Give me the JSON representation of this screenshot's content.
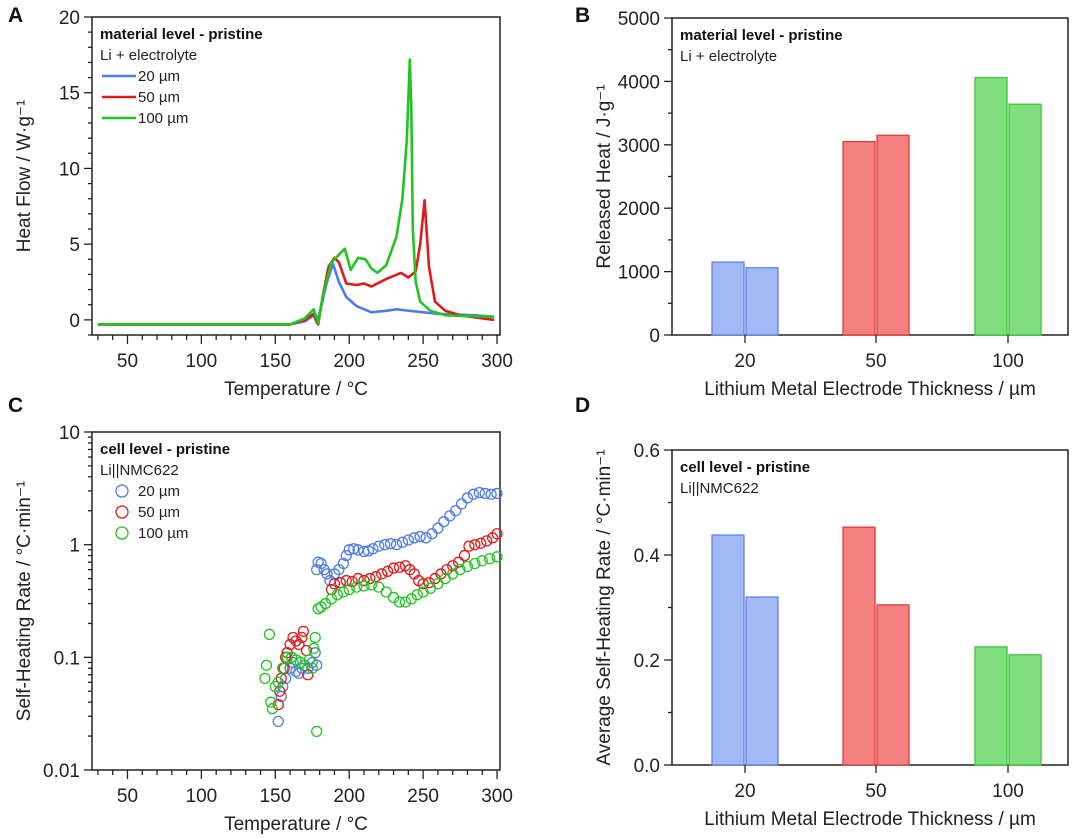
{
  "colors": {
    "20": "#4f7bea",
    "50": "#e01b1b",
    "100": "#22c422",
    "bar_fill": {
      "20": "#a3b9f6",
      "50": "#f58080",
      "100": "#80e080"
    },
    "bar_stroke": {
      "20": "#5d82e8",
      "50": "#e03a3a",
      "100": "#3fc63f"
    }
  },
  "chart_data": [
    {
      "panel": "A",
      "type": "line",
      "legend_title": "material level - pristine",
      "legend_subtitle": "Li + electrolyte",
      "xlabel": "Temperature / °C",
      "ylabel": "Heat Flow / W·g⁻¹",
      "xlim": [
        26,
        302
      ],
      "ylim": [
        -1,
        20
      ],
      "xticks": [
        50,
        100,
        150,
        200,
        250,
        300
      ],
      "yticks": [
        0,
        5,
        10,
        15,
        20
      ],
      "series": [
        {
          "name": "20 µm",
          "key": "20",
          "points": [
            [
              30,
              -0.3
            ],
            [
              160,
              -0.3
            ],
            [
              170,
              -0.1
            ],
            [
              176,
              0.3
            ],
            [
              178,
              -0.2
            ],
            [
              180,
              0.5
            ],
            [
              185,
              2.5
            ],
            [
              189,
              3.7
            ],
            [
              193,
              2.5
            ],
            [
              198,
              1.5
            ],
            [
              205,
              0.9
            ],
            [
              215,
              0.5
            ],
            [
              225,
              0.6
            ],
            [
              232,
              0.7
            ],
            [
              245,
              0.55
            ],
            [
              260,
              0.4
            ],
            [
              285,
              0.3
            ],
            [
              298,
              0.2
            ]
          ]
        },
        {
          "name": "50 µm",
          "key": "50",
          "points": [
            [
              30,
              -0.3
            ],
            [
              160,
              -0.3
            ],
            [
              170,
              0
            ],
            [
              176,
              0.4
            ],
            [
              179,
              -0.3
            ],
            [
              182,
              1.5
            ],
            [
              186,
              3.5
            ],
            [
              190,
              4.1
            ],
            [
              193,
              3.8
            ],
            [
              198,
              2.4
            ],
            [
              205,
              2.3
            ],
            [
              210,
              2.4
            ],
            [
              215,
              2.2
            ],
            [
              225,
              2.7
            ],
            [
              235,
              3.1
            ],
            [
              240,
              2.8
            ],
            [
              245,
              3.2
            ],
            [
              248,
              5
            ],
            [
              251,
              7.9
            ],
            [
              254,
              3.5
            ],
            [
              258,
              1.2
            ],
            [
              265,
              0.6
            ],
            [
              275,
              0.3
            ],
            [
              298,
              0
            ]
          ]
        },
        {
          "name": "100 µm",
          "key": "100",
          "points": [
            [
              30,
              -0.3
            ],
            [
              160,
              -0.3
            ],
            [
              170,
              0.1
            ],
            [
              176,
              0.7
            ],
            [
              179,
              -0.2
            ],
            [
              182,
              1.5
            ],
            [
              188,
              3.8
            ],
            [
              193,
              4.3
            ],
            [
              197,
              4.7
            ],
            [
              201,
              3.3
            ],
            [
              206,
              4.1
            ],
            [
              211,
              4
            ],
            [
              215,
              3.4
            ],
            [
              219,
              3.1
            ],
            [
              225,
              3.6
            ],
            [
              232,
              5.5
            ],
            [
              236,
              8
            ],
            [
              239,
              12
            ],
            [
              241,
              17.2
            ],
            [
              242,
              14
            ],
            [
              243,
              6
            ],
            [
              245,
              2.5
            ],
            [
              248,
              1.2
            ],
            [
              255,
              0.6
            ],
            [
              265,
              0.3
            ],
            [
              280,
              0.25
            ],
            [
              298,
              0.2
            ]
          ]
        }
      ]
    },
    {
      "panel": "B",
      "type": "bar",
      "legend_title": "material level - pristine",
      "legend_subtitle": "Li + electrolyte",
      "xlabel": "Lithium Metal Electrode Thickness / µm",
      "ylabel": "Released Heat / J·g⁻¹",
      "categories": [
        "20",
        "50",
        "100"
      ],
      "ylim": [
        0,
        5000
      ],
      "yticks": [
        0,
        1000,
        2000,
        3000,
        4000,
        5000
      ],
      "values": [
        [
          1150,
          1060
        ],
        [
          3050,
          3150
        ],
        [
          4060,
          3640
        ]
      ]
    },
    {
      "panel": "C",
      "type": "scatter",
      "yscale": "log",
      "legend_title": "cell level - pristine",
      "legend_subtitle": "Li||NMC622",
      "xlabel": "Temperature / °C",
      "ylabel": "Self-Heating Rate / °C·min⁻¹",
      "xlim": [
        26,
        302
      ],
      "ylim": [
        0.01,
        10
      ],
      "xticks": [
        50,
        100,
        150,
        200,
        250,
        300
      ],
      "yticks": [
        "0.01",
        "0.1",
        "1",
        "10"
      ],
      "series": [
        {
          "name": "20 µm",
          "key": "20",
          "points": [
            [
              152,
              0.027
            ],
            [
              154,
              0.045
            ],
            [
              155,
              0.055
            ],
            [
              157,
              0.065
            ],
            [
              160,
              0.08
            ],
            [
              162,
              0.09
            ],
            [
              164,
              0.075
            ],
            [
              166,
              0.072
            ],
            [
              168,
              0.08
            ],
            [
              172,
              0.08
            ],
            [
              175,
              0.09
            ],
            [
              177,
              0.11
            ],
            [
              178,
              0.085
            ],
            [
              178,
              0.6
            ],
            [
              179,
              0.7
            ],
            [
              181,
              0.68
            ],
            [
              183,
              0.6
            ],
            [
              185,
              0.55
            ],
            [
              187,
              0.48
            ],
            [
              190,
              0.55
            ],
            [
              193,
              0.6
            ],
            [
              196,
              0.68
            ],
            [
              198,
              0.8
            ],
            [
              200,
              0.9
            ],
            [
              203,
              0.92
            ],
            [
              206,
              0.9
            ],
            [
              210,
              0.87
            ],
            [
              213,
              0.88
            ],
            [
              216,
              0.92
            ],
            [
              220,
              0.97
            ],
            [
              224,
              1.0
            ],
            [
              228,
              1.02
            ],
            [
              232,
              1.0
            ],
            [
              236,
              1.05
            ],
            [
              240,
              1.1
            ],
            [
              244,
              1.15
            ],
            [
              248,
              1.18
            ],
            [
              252,
              1.15
            ],
            [
              256,
              1.25
            ],
            [
              260,
              1.4
            ],
            [
              264,
              1.6
            ],
            [
              268,
              1.8
            ],
            [
              272,
              2.0
            ],
            [
              276,
              2.3
            ],
            [
              280,
              2.6
            ],
            [
              284,
              2.8
            ],
            [
              288,
              2.9
            ],
            [
              292,
              2.85
            ],
            [
              296,
              2.8
            ],
            [
              300,
              2.85
            ]
          ]
        },
        {
          "name": "50 µm",
          "key": "50",
          "points": [
            [
              152,
              0.038
            ],
            [
              153,
              0.05
            ],
            [
              154,
              0.065
            ],
            [
              156,
              0.08
            ],
            [
              157,
              0.1
            ],
            [
              158,
              0.11
            ],
            [
              160,
              0.13
            ],
            [
              162,
              0.15
            ],
            [
              164,
              0.14
            ],
            [
              166,
              0.13
            ],
            [
              168,
              0.15
            ],
            [
              169,
              0.17
            ],
            [
              171,
              0.115
            ],
            [
              172,
              0.07
            ],
            [
              188,
              0.4
            ],
            [
              190,
              0.45
            ],
            [
              194,
              0.46
            ],
            [
              198,
              0.48
            ],
            [
              202,
              0.47
            ],
            [
              206,
              0.5
            ],
            [
              210,
              0.48
            ],
            [
              214,
              0.5
            ],
            [
              218,
              0.52
            ],
            [
              222,
              0.55
            ],
            [
              226,
              0.58
            ],
            [
              230,
              0.62
            ],
            [
              234,
              0.63
            ],
            [
              238,
              0.65
            ],
            [
              241,
              0.6
            ],
            [
              244,
              0.55
            ],
            [
              247,
              0.48
            ],
            [
              250,
              0.45
            ],
            [
              254,
              0.46
            ],
            [
              258,
              0.5
            ],
            [
              262,
              0.55
            ],
            [
              266,
              0.6
            ],
            [
              270,
              0.65
            ],
            [
              274,
              0.7
            ],
            [
              278,
              0.8
            ],
            [
              281,
              0.97
            ],
            [
              285,
              1.0
            ],
            [
              289,
              1.03
            ],
            [
              293,
              1.08
            ],
            [
              297,
              1.15
            ],
            [
              300,
              1.25
            ]
          ]
        },
        {
          "name": "100 µm",
          "key": "100",
          "points": [
            [
              143,
              0.065
            ],
            [
              144,
              0.085
            ],
            [
              146,
              0.16
            ],
            [
              147,
              0.04
            ],
            [
              148,
              0.035
            ],
            [
              150,
              0.055
            ],
            [
              152,
              0.06
            ],
            [
              155,
              0.08
            ],
            [
              158,
              0.1
            ],
            [
              161,
              0.1
            ],
            [
              164,
              0.095
            ],
            [
              167,
              0.09
            ],
            [
              170,
              0.085
            ],
            [
              173,
              0.095
            ],
            [
              175,
              0.08
            ],
            [
              176,
              0.12
            ],
            [
              177,
              0.15
            ],
            [
              178,
              0.022
            ],
            [
              179,
              0.27
            ],
            [
              181,
              0.28
            ],
            [
              184,
              0.3
            ],
            [
              188,
              0.33
            ],
            [
              192,
              0.36
            ],
            [
              196,
              0.38
            ],
            [
              200,
              0.4
            ],
            [
              205,
              0.42
            ],
            [
              210,
              0.43
            ],
            [
              215,
              0.44
            ],
            [
              220,
              0.42
            ],
            [
              225,
              0.38
            ],
            [
              230,
              0.34
            ],
            [
              234,
              0.31
            ],
            [
              238,
              0.31
            ],
            [
              242,
              0.33
            ],
            [
              246,
              0.36
            ],
            [
              250,
              0.38
            ],
            [
              255,
              0.41
            ],
            [
              260,
              0.45
            ],
            [
              265,
              0.5
            ],
            [
              270,
              0.55
            ],
            [
              275,
              0.6
            ],
            [
              280,
              0.64
            ],
            [
              285,
              0.68
            ],
            [
              290,
              0.72
            ],
            [
              295,
              0.75
            ],
            [
              300,
              0.78
            ]
          ]
        }
      ]
    },
    {
      "panel": "D",
      "type": "bar",
      "legend_title": "cell level - pristine",
      "legend_subtitle": "Li||NMC622",
      "xlabel": "Lithium Metal Electrode Thickness / µm",
      "ylabel": "Average Self-Heating Rate / °C·min⁻¹",
      "categories": [
        "20",
        "50",
        "100"
      ],
      "ylim": [
        0,
        0.6
      ],
      "yticks": [
        "0.0",
        "0.2",
        "0.4",
        "0.6"
      ],
      "values": [
        [
          0.438,
          0.32
        ],
        [
          0.453,
          0.305
        ],
        [
          0.225,
          0.21
        ]
      ]
    }
  ]
}
